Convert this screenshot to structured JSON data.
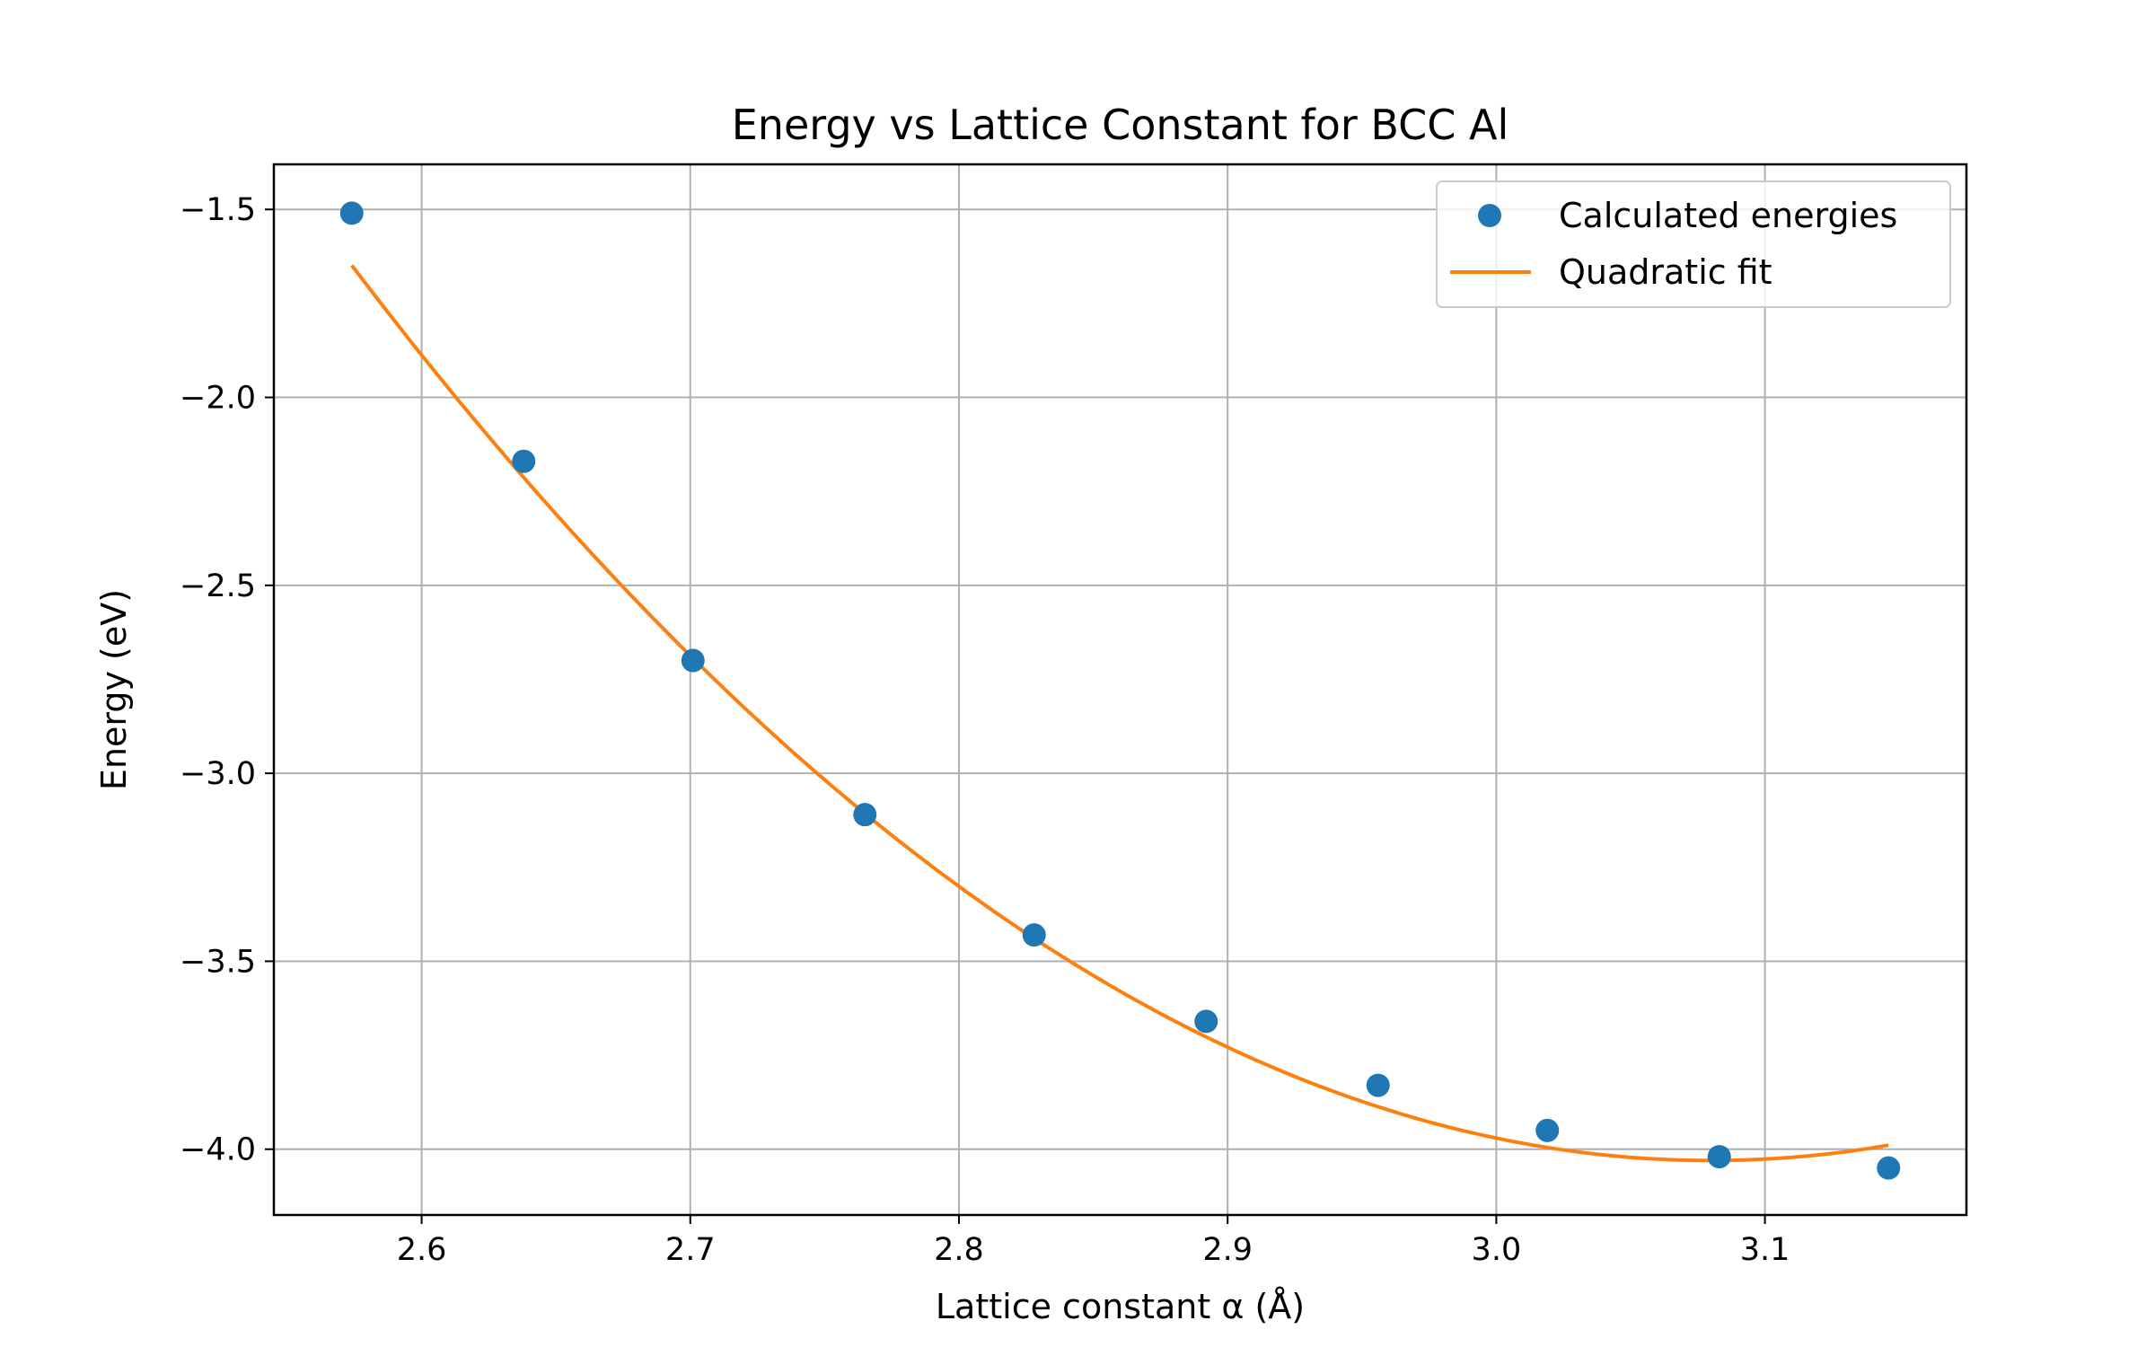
{
  "chart_data": {
    "type": "scatter",
    "title": "Energy vs Lattice Constant for BCC Al",
    "xlabel": "Lattice constant α (Å)",
    "ylabel": "Energy (eV)",
    "xlim": [
      2.545,
      3.175
    ],
    "ylim": [
      -4.175,
      -1.38
    ],
    "xticks": [
      2.6,
      2.7,
      2.8,
      2.9,
      3.0,
      3.1
    ],
    "xtick_labels": [
      "2.6",
      "2.7",
      "2.8",
      "2.9",
      "3.0",
      "3.1"
    ],
    "yticks": [
      -1.5,
      -2.0,
      -2.5,
      -3.0,
      -3.5,
      -4.0
    ],
    "ytick_labels": [
      "−1.5",
      "−2.0",
      "−2.5",
      "−3.0",
      "−3.5",
      "−4.0"
    ],
    "grid": true,
    "legend_position": "top-right",
    "series": [
      {
        "name": "Calculated energies",
        "kind": "markers",
        "color": "#1f77b4",
        "x": [
          2.574,
          2.638,
          2.701,
          2.765,
          2.828,
          2.892,
          2.956,
          3.019,
          3.083,
          3.146
        ],
        "y": [
          -1.51,
          -2.17,
          -2.7,
          -3.11,
          -3.43,
          -3.66,
          -3.83,
          -3.95,
          -4.02,
          -4.05
        ]
      },
      {
        "name": "Quadratic fit",
        "kind": "line",
        "color": "#ff7f0e",
        "fit": {
          "a": 9.3,
          "vertex_x": 3.08,
          "vertex_y": -4.03
        },
        "x_range": [
          2.574,
          3.146
        ]
      }
    ]
  }
}
